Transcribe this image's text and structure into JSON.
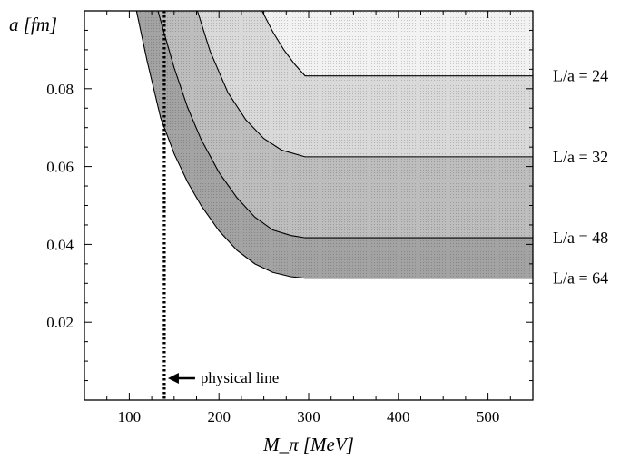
{
  "chart_data": {
    "type": "area",
    "title": "",
    "xlabel": "M_π [MeV]",
    "ylabel": "a [fm]",
    "xlim": [
      50,
      550
    ],
    "ylim": [
      0,
      0.1
    ],
    "grid": false,
    "x_ticks": [
      {
        "value": 100,
        "label": "100"
      },
      {
        "value": 200,
        "label": "200"
      },
      {
        "value": 300,
        "label": "300"
      },
      {
        "value": 400,
        "label": "400"
      },
      {
        "value": 500,
        "label": "500"
      }
    ],
    "y_ticks": [
      {
        "value": 0.02,
        "label": "0.02"
      },
      {
        "value": 0.04,
        "label": "0.04"
      },
      {
        "value": 0.06,
        "label": "0.06"
      },
      {
        "value": 0.08,
        "label": "0.08"
      }
    ],
    "series": [
      {
        "label": "L/a = 24",
        "fill": "#f2f2f2",
        "x": [
          248,
          260,
          272,
          284,
          296,
          550
        ],
        "y": [
          0.1,
          0.0946,
          0.0901,
          0.0864,
          0.0833,
          0.0833
        ]
      },
      {
        "label": "L/a = 32",
        "fill": "#d9d9d9",
        "x": [
          176,
          190,
          210,
          230,
          250,
          270,
          296,
          550
        ],
        "y": [
          0.1,
          0.0897,
          0.079,
          0.072,
          0.0672,
          0.0642,
          0.0625,
          0.0625
        ]
      },
      {
        "label": "L/a = 48",
        "fill": "#bdbdbd",
        "x": [
          132,
          140,
          150,
          165,
          180,
          200,
          220,
          240,
          260,
          280,
          296,
          550
        ],
        "y": [
          0.1,
          0.0934,
          0.0854,
          0.0752,
          0.067,
          0.0585,
          0.052,
          0.047,
          0.0437,
          0.0423,
          0.0417,
          0.0417
        ]
      },
      {
        "label": "L/a = 64",
        "fill": "#a3a3a3",
        "x": [
          108,
          120,
          135,
          150,
          165,
          180,
          200,
          220,
          240,
          260,
          280,
          296,
          550
        ],
        "y": [
          0.1,
          0.087,
          0.0725,
          0.0633,
          0.056,
          0.05,
          0.0435,
          0.0385,
          0.035,
          0.0328,
          0.0317,
          0.0313,
          0.0313
        ]
      }
    ],
    "annotations": [
      {
        "text": "physical line",
        "x": 139
      }
    ]
  }
}
